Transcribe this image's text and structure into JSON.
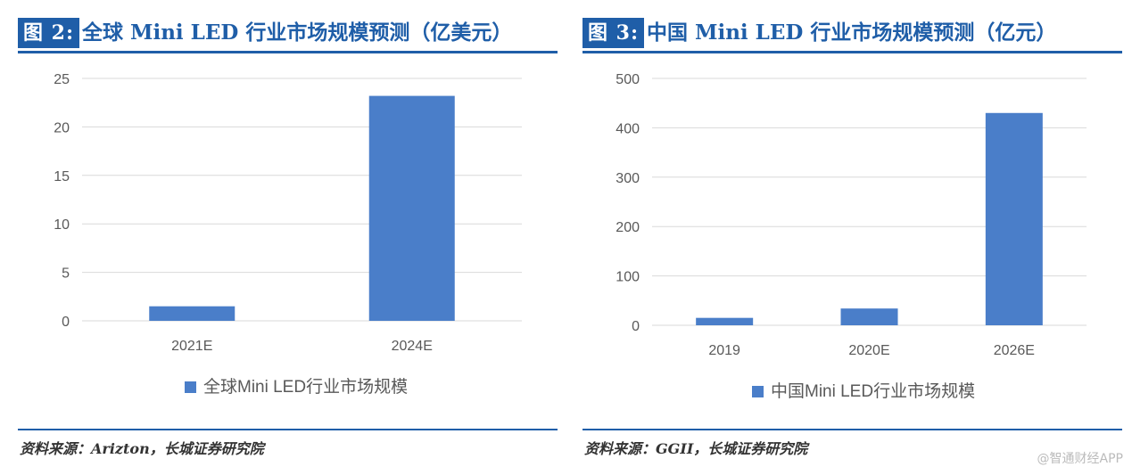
{
  "figures": [
    {
      "tag": "图 2:",
      "title": "全球 Mini LED 行业市场规模预测（亿美元）",
      "source": "资料来源：Arizton，长城证券研究院"
    },
    {
      "tag": "图 3:",
      "title": "中国 Mini LED 行业市场规模预测（亿元）",
      "source": "资料来源：GGII，长城证券研究院"
    }
  ],
  "watermark": "@智通财经APP",
  "colors": {
    "bar": "#4a7ec9",
    "accent": "#1f5ea8",
    "grid": "#d9d9d9"
  },
  "chart_data": [
    {
      "type": "bar",
      "categories": [
        "2021E",
        "2024E"
      ],
      "series": [
        {
          "name": "全球Mini LED行业市场规模",
          "values": [
            1.5,
            23.2
          ]
        }
      ],
      "ylim": [
        0,
        25
      ],
      "yticks": [
        0,
        5,
        10,
        15,
        20,
        25
      ],
      "grid": true,
      "legend": "bottom"
    },
    {
      "type": "bar",
      "categories": [
        "2019",
        "2020E",
        "2026E"
      ],
      "series": [
        {
          "name": "中国Mini LED行业市场规模",
          "values": [
            15,
            34,
            430
          ]
        }
      ],
      "ylim": [
        0,
        500
      ],
      "yticks": [
        0,
        100,
        200,
        300,
        400,
        500
      ],
      "grid": true,
      "legend": "bottom"
    }
  ]
}
